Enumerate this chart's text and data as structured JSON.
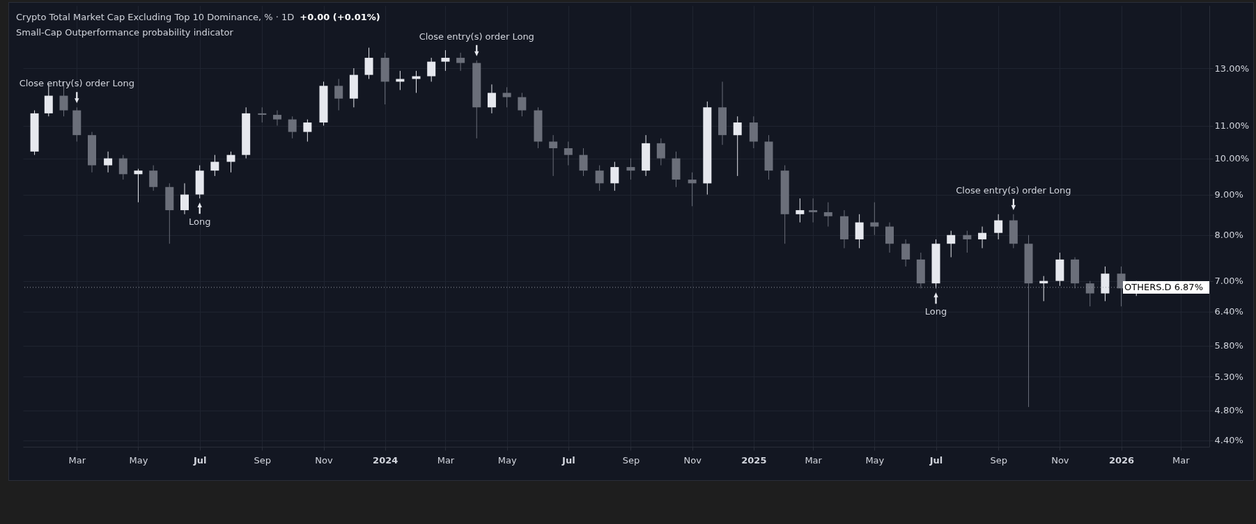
{
  "chart_data": {
    "type": "candlestick",
    "title": "Crypto Total Market Cap Excluding Top 10 Dominance, % · 1D",
    "subtitle": "Small-Cap Outperformance probability indicator",
    "x": [
      "2023-01-18",
      "2023-02-01",
      "2023-02-16",
      "2023-03-01",
      "2023-03-16",
      "2023-04-01",
      "2023-04-16",
      "2023-05-01",
      "2023-05-16",
      "2023-06-01",
      "2023-06-16",
      "2023-07-01",
      "2023-07-16",
      "2023-08-01",
      "2023-08-16",
      "2023-09-01",
      "2023-09-16",
      "2023-10-01",
      "2023-10-16",
      "2023-11-01",
      "2023-11-16",
      "2023-12-01",
      "2023-12-16",
      "2024-01-01",
      "2024-01-16",
      "2024-02-01",
      "2024-02-16",
      "2024-03-01",
      "2024-03-16",
      "2024-04-01",
      "2024-04-16",
      "2024-05-01",
      "2024-05-16",
      "2024-06-01",
      "2024-06-16",
      "2024-07-01",
      "2024-07-16",
      "2024-08-01",
      "2024-08-16",
      "2024-09-01",
      "2024-09-16",
      "2024-10-01",
      "2024-10-16",
      "2024-11-01",
      "2024-11-16",
      "2024-12-01",
      "2024-12-16",
      "2025-01-01",
      "2025-01-16",
      "2025-02-01",
      "2025-02-16",
      "2025-03-01",
      "2025-03-16",
      "2025-04-01",
      "2025-04-16",
      "2025-05-01",
      "2025-05-16",
      "2025-06-01",
      "2025-06-16",
      "2025-07-01",
      "2025-07-16",
      "2025-08-01",
      "2025-08-16",
      "2025-09-01",
      "2025-09-16",
      "2025-10-01",
      "2025-10-16",
      "2025-11-01",
      "2025-11-16",
      "2025-12-01",
      "2025-12-16",
      "2026-01-01",
      "2026-01-16"
    ],
    "ohlc": [
      [
        10.2,
        11.5,
        10.1,
        11.4
      ],
      [
        11.4,
        12.4,
        11.3,
        12.0
      ],
      [
        12.0,
        12.5,
        11.3,
        11.5
      ],
      [
        11.5,
        11.6,
        10.5,
        10.7
      ],
      [
        10.7,
        10.8,
        9.6,
        9.8
      ],
      [
        9.8,
        10.2,
        9.6,
        10.0
      ],
      [
        10.0,
        10.1,
        9.4,
        9.55
      ],
      [
        9.55,
        9.7,
        8.8,
        9.65
      ],
      [
        9.65,
        9.8,
        9.1,
        9.2
      ],
      [
        9.2,
        9.3,
        7.8,
        8.6
      ],
      [
        8.6,
        9.3,
        8.5,
        9.0
      ],
      [
        9.0,
        9.8,
        8.9,
        9.65
      ],
      [
        9.65,
        10.1,
        9.5,
        9.9
      ],
      [
        9.9,
        10.2,
        9.6,
        10.1
      ],
      [
        10.1,
        11.6,
        10.0,
        11.4
      ],
      [
        11.4,
        11.6,
        11.1,
        11.35
      ],
      [
        11.35,
        11.5,
        11.0,
        11.2
      ],
      [
        11.2,
        11.3,
        10.6,
        10.8
      ],
      [
        10.8,
        11.2,
        10.5,
        11.1
      ],
      [
        11.1,
        12.5,
        11.0,
        12.35
      ],
      [
        12.35,
        12.6,
        11.5,
        11.9
      ],
      [
        11.9,
        13.0,
        11.6,
        12.75
      ],
      [
        12.75,
        13.8,
        12.6,
        13.4
      ],
      [
        13.4,
        13.6,
        11.7,
        12.5
      ],
      [
        12.5,
        12.9,
        12.2,
        12.6
      ],
      [
        12.6,
        12.9,
        12.1,
        12.7
      ],
      [
        12.7,
        13.4,
        12.5,
        13.25
      ],
      [
        13.25,
        13.7,
        12.9,
        13.4
      ],
      [
        13.4,
        13.6,
        12.9,
        13.2
      ],
      [
        13.2,
        13.3,
        10.6,
        11.6
      ],
      [
        11.6,
        12.4,
        11.4,
        12.1
      ],
      [
        12.1,
        12.3,
        11.6,
        11.95
      ],
      [
        11.95,
        12.1,
        11.3,
        11.5
      ],
      [
        11.5,
        11.6,
        10.3,
        10.5
      ],
      [
        10.5,
        10.7,
        9.5,
        10.3
      ],
      [
        10.3,
        10.5,
        9.8,
        10.1
      ],
      [
        10.1,
        10.3,
        9.5,
        9.65
      ],
      [
        9.65,
        9.8,
        9.1,
        9.3
      ],
      [
        9.3,
        9.9,
        9.1,
        9.75
      ],
      [
        9.75,
        10.0,
        9.4,
        9.65
      ],
      [
        9.65,
        10.7,
        9.5,
        10.45
      ],
      [
        10.45,
        10.6,
        9.8,
        10.0
      ],
      [
        10.0,
        10.2,
        9.2,
        9.4
      ],
      [
        9.4,
        9.6,
        8.7,
        9.3
      ],
      [
        9.3,
        11.8,
        9.0,
        11.6
      ],
      [
        11.6,
        12.5,
        10.4,
        10.7
      ],
      [
        10.7,
        11.3,
        9.5,
        11.1
      ],
      [
        11.1,
        11.3,
        10.3,
        10.5
      ],
      [
        10.5,
        10.7,
        9.4,
        9.65
      ],
      [
        9.65,
        9.8,
        7.8,
        8.5
      ],
      [
        8.5,
        8.9,
        8.3,
        8.6
      ],
      [
        8.6,
        8.9,
        8.3,
        8.55
      ],
      [
        8.55,
        8.8,
        8.2,
        8.45
      ],
      [
        8.45,
        8.6,
        7.7,
        7.9
      ],
      [
        7.9,
        8.5,
        7.7,
        8.3
      ],
      [
        8.3,
        8.8,
        8.0,
        8.2
      ],
      [
        8.2,
        8.3,
        7.6,
        7.8
      ],
      [
        7.8,
        7.9,
        7.3,
        7.45
      ],
      [
        7.45,
        7.6,
        6.85,
        6.95
      ],
      [
        6.95,
        7.9,
        6.85,
        7.8
      ],
      [
        7.8,
        8.1,
        7.5,
        8.0
      ],
      [
        8.0,
        8.1,
        7.6,
        7.9
      ],
      [
        7.9,
        8.2,
        7.7,
        8.05
      ],
      [
        8.05,
        8.5,
        7.9,
        8.35
      ],
      [
        8.35,
        8.5,
        7.7,
        7.8
      ],
      [
        7.8,
        8.0,
        4.85,
        6.95
      ],
      [
        6.95,
        7.1,
        6.6,
        7.0
      ],
      [
        7.0,
        7.6,
        6.9,
        7.45
      ],
      [
        7.45,
        7.5,
        6.85,
        6.95
      ],
      [
        6.95,
        7.0,
        6.5,
        6.75
      ],
      [
        6.75,
        7.3,
        6.6,
        7.15
      ],
      [
        7.15,
        7.3,
        6.5,
        6.85
      ],
      [
        6.85,
        7.0,
        6.7,
        6.87
      ]
    ],
    "log": true,
    "grid": true,
    "xlim": [
      "2023-01-10",
      "2026-03-26"
    ],
    "xticks": [
      {
        "value": "2023-03-01",
        "label": "Mar"
      },
      {
        "value": "2023-05-01",
        "label": "May"
      },
      {
        "value": "2023-07-01",
        "label": "Jul"
      },
      {
        "value": "2023-09-01",
        "label": "Sep"
      },
      {
        "value": "2023-11-01",
        "label": "Nov"
      },
      {
        "value": "2024-01-01",
        "label": "2024"
      },
      {
        "value": "2024-03-01",
        "label": "Mar"
      },
      {
        "value": "2024-05-01",
        "label": "May"
      },
      {
        "value": "2024-07-01",
        "label": "Jul"
      },
      {
        "value": "2024-09-01",
        "label": "Sep"
      },
      {
        "value": "2024-11-01",
        "label": "Nov"
      },
      {
        "value": "2025-01-01",
        "label": "2025"
      },
      {
        "value": "2025-03-01",
        "label": "Mar"
      },
      {
        "value": "2025-05-01",
        "label": "May"
      },
      {
        "value": "2025-07-01",
        "label": "Jul"
      },
      {
        "value": "2025-09-01",
        "label": "Sep"
      },
      {
        "value": "2025-11-01",
        "label": "Nov"
      },
      {
        "value": "2026-01-01",
        "label": "2026"
      },
      {
        "value": "2026-03-01",
        "label": "Mar"
      }
    ],
    "ylim": [
      4.32,
      15.6
    ],
    "yticks": [
      {
        "value": 4.4,
        "label": "4.40%"
      },
      {
        "value": 4.8,
        "label": "4.80%"
      },
      {
        "value": 5.3,
        "label": "5.30%"
      },
      {
        "value": 5.8,
        "label": "5.80%"
      },
      {
        "value": 6.4,
        "label": "6.40%"
      },
      {
        "value": 7,
        "label": "7.00%"
      },
      {
        "value": 8,
        "label": "8.00%"
      },
      {
        "value": 9,
        "label": "9.00%"
      },
      {
        "value": 10,
        "label": "10.00%"
      },
      {
        "value": 11,
        "label": "11.00%"
      },
      {
        "value": 13,
        "label": "13.00%"
      }
    ],
    "ref_lines": [
      {
        "axis": "y",
        "value": 6.87,
        "label": "OTHERS.D 6.87%",
        "line_style": "dotted"
      }
    ],
    "annotations": [
      "+0.00 (+0.01%)",
      {
        "text": "Close entry(s) order Long",
        "x": "2023-03-01",
        "y": 11.6
      },
      {
        "text": "Close entry(s) order Long",
        "x": "2024-04-01",
        "y": 13.3
      },
      {
        "text": "Close entry(s) order Long",
        "x": "2025-09-16",
        "y": 8.5
      },
      {
        "text": "Long",
        "x": "2023-07-01",
        "y": 8.9
      },
      {
        "text": "Long",
        "x": "2025-07-01",
        "y": 6.85
      }
    ]
  }
}
